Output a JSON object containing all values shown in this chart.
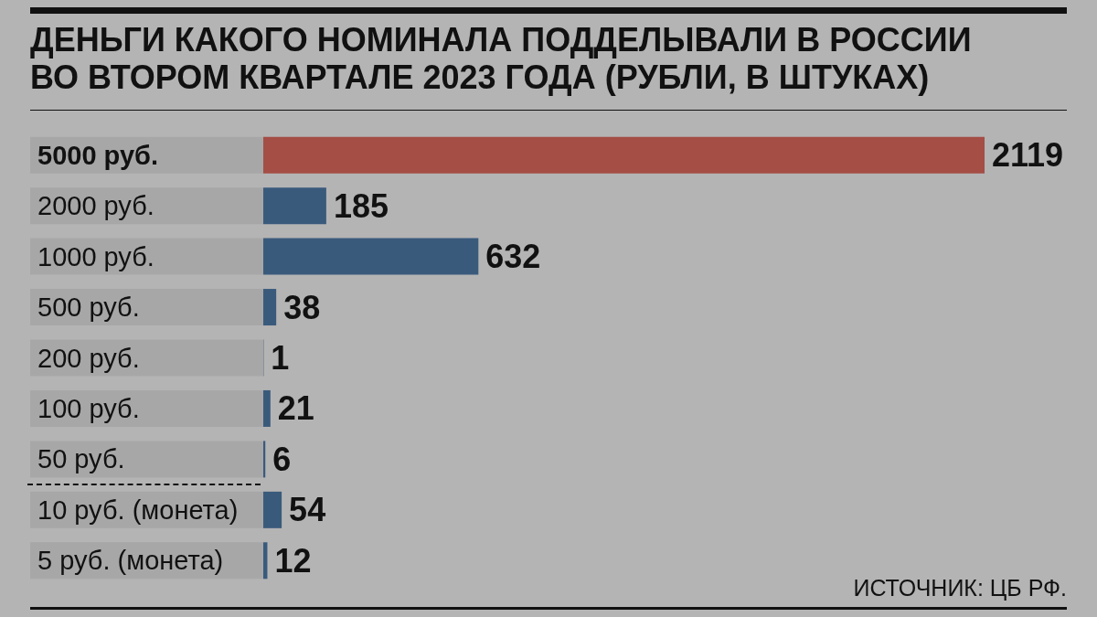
{
  "chart_data": {
    "type": "bar",
    "orientation": "horizontal",
    "title": "ДЕНЬГИ КАКОГО НОМИНАЛА ПОДДЕЛЫВАЛИ В РОССИИ ВО ВТОРОМ КВАРТАЛЕ 2023 ГОДА (РУБЛИ, В ШТУКАХ)",
    "categories": [
      "5000 руб.",
      "2000 руб.",
      "1000 руб.",
      "500 руб.",
      "200 руб.",
      "100 руб.",
      "50 руб.",
      "10 руб. (монета)",
      "5 руб. (монета)"
    ],
    "values": [
      2119,
      185,
      632,
      38,
      1,
      21,
      6,
      54,
      12
    ],
    "colors": [
      "#a44e46",
      "#3a5a7c",
      "#3a5a7c",
      "#3a5a7c",
      "#3a5a7c",
      "#3a5a7c",
      "#3a5a7c",
      "#3a5a7c",
      "#3a5a7c"
    ],
    "data_labels": true,
    "annotations": [
      "ИСТОЧНИК: ЦБ РФ."
    ]
  }
}
